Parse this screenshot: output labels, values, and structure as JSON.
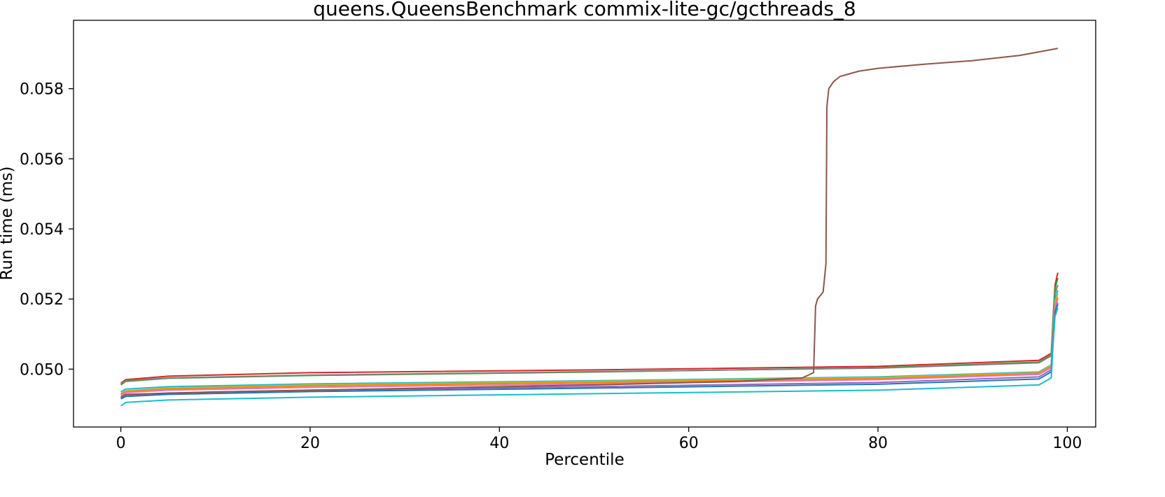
{
  "chart_data": {
    "type": "line",
    "title": "queens.QueensBenchmark commix-lite-gc/gcthreads_8",
    "xlabel": "Percentile",
    "ylabel": "Run time (ms)",
    "xlim": [
      -5,
      103
    ],
    "ylim": [
      0.04835,
      0.05995
    ],
    "xticks": [
      0,
      20,
      40,
      60,
      80,
      100
    ],
    "yticks": [
      0.05,
      0.052,
      0.054,
      0.056,
      0.058
    ],
    "xtick_labels": [
      "0",
      "20",
      "40",
      "60",
      "80",
      "100"
    ],
    "ytick_labels": [
      "0.050",
      "0.052",
      "0.054",
      "0.056",
      "0.058"
    ],
    "grid": false,
    "legend": "none",
    "series": [
      {
        "color": "#d62728",
        "values": [
          [
            0,
            0.0496
          ],
          [
            0.5,
            0.0497
          ],
          [
            5,
            0.0498
          ],
          [
            20,
            0.0499
          ],
          [
            50,
            0.04998
          ],
          [
            80,
            0.05008
          ],
          [
            97,
            0.05025
          ],
          [
            98.3,
            0.05045
          ],
          [
            98.5,
            0.0515
          ],
          [
            98.7,
            0.0524
          ],
          [
            99,
            0.05275
          ]
        ]
      },
      {
        "color": "#2ca02c",
        "values": [
          [
            0,
            0.04955
          ],
          [
            0.5,
            0.04965
          ],
          [
            5,
            0.04974
          ],
          [
            20,
            0.04982
          ],
          [
            50,
            0.04992
          ],
          [
            80,
            0.05004
          ],
          [
            97,
            0.0502
          ],
          [
            98.3,
            0.0504
          ],
          [
            98.5,
            0.0514
          ],
          [
            98.7,
            0.0523
          ],
          [
            99,
            0.0526
          ]
        ]
      },
      {
        "color": "#7f7f7f",
        "values": [
          [
            0,
            0.04958
          ],
          [
            0.5,
            0.04967
          ],
          [
            5,
            0.04975
          ],
          [
            20,
            0.04983
          ],
          [
            50,
            0.04993
          ],
          [
            80,
            0.05003
          ],
          [
            97,
            0.05018
          ],
          [
            98.3,
            0.05038
          ],
          [
            98.5,
            0.0513
          ],
          [
            98.7,
            0.05215
          ],
          [
            99,
            0.0524
          ]
        ]
      },
      {
        "color": "#17becf",
        "values": [
          [
            0,
            0.04935
          ],
          [
            0.5,
            0.04943
          ],
          [
            5,
            0.0495
          ],
          [
            20,
            0.04958
          ],
          [
            50,
            0.04967
          ],
          [
            80,
            0.04978
          ],
          [
            97,
            0.04992
          ],
          [
            98.3,
            0.05012
          ],
          [
            98.5,
            0.0512
          ],
          [
            98.7,
            0.052
          ],
          [
            99,
            0.05225
          ]
        ]
      },
      {
        "color": "#bcbd22",
        "values": [
          [
            0,
            0.0493
          ],
          [
            0.5,
            0.04938
          ],
          [
            5,
            0.04946
          ],
          [
            20,
            0.04955
          ],
          [
            50,
            0.04965
          ],
          [
            80,
            0.04976
          ],
          [
            97,
            0.0499
          ],
          [
            98.3,
            0.0501
          ],
          [
            98.5,
            0.0511
          ],
          [
            98.7,
            0.0519
          ],
          [
            99,
            0.05215
          ]
        ]
      },
      {
        "color": "#ff7f0e",
        "values": [
          [
            0,
            0.04928
          ],
          [
            0.5,
            0.04936
          ],
          [
            5,
            0.04943
          ],
          [
            20,
            0.04952
          ],
          [
            50,
            0.04962
          ],
          [
            80,
            0.04973
          ],
          [
            97,
            0.04988
          ],
          [
            98.3,
            0.05007
          ],
          [
            98.5,
            0.051
          ],
          [
            98.7,
            0.0518
          ],
          [
            99,
            0.05205
          ]
        ]
      },
      {
        "color": "#e377c2",
        "values": [
          [
            0,
            0.04925
          ],
          [
            0.5,
            0.04933
          ],
          [
            5,
            0.0494
          ],
          [
            20,
            0.04948
          ],
          [
            50,
            0.04958
          ],
          [
            80,
            0.0497
          ],
          [
            97,
            0.04985
          ],
          [
            98.3,
            0.05004
          ],
          [
            98.5,
            0.051
          ],
          [
            98.7,
            0.05175
          ],
          [
            99,
            0.052
          ]
        ]
      },
      {
        "color": "#9467bd",
        "values": [
          [
            0,
            0.04918
          ],
          [
            0.5,
            0.04926
          ],
          [
            5,
            0.04932
          ],
          [
            20,
            0.0494
          ],
          [
            50,
            0.0495
          ],
          [
            80,
            0.04962
          ],
          [
            97,
            0.04978
          ],
          [
            98.3,
            0.04998
          ],
          [
            98.5,
            0.0509
          ],
          [
            98.7,
            0.05165
          ],
          [
            99,
            0.0519
          ]
        ]
      },
      {
        "color": "#1f77b4",
        "values": [
          [
            0,
            0.04915
          ],
          [
            0.5,
            0.04922
          ],
          [
            5,
            0.04928
          ],
          [
            20,
            0.04936
          ],
          [
            50,
            0.04946
          ],
          [
            80,
            0.04957
          ],
          [
            97,
            0.04972
          ],
          [
            98.3,
            0.04992
          ],
          [
            98.5,
            0.0508
          ],
          [
            98.7,
            0.0516
          ],
          [
            99,
            0.05185
          ]
        ]
      },
      {
        "color": "#17becf",
        "values": [
          [
            0,
            0.04895
          ],
          [
            0.5,
            0.04905
          ],
          [
            5,
            0.04912
          ],
          [
            20,
            0.0492
          ],
          [
            50,
            0.0493
          ],
          [
            80,
            0.0494
          ],
          [
            97,
            0.04955
          ],
          [
            98.3,
            0.04975
          ],
          [
            98.5,
            0.0507
          ],
          [
            98.7,
            0.0515
          ],
          [
            99,
            0.05175
          ]
        ]
      },
      {
        "color": "#8c564b",
        "values": [
          [
            0,
            0.0492
          ],
          [
            0.5,
            0.04928
          ],
          [
            10,
            0.04935
          ],
          [
            30,
            0.04945
          ],
          [
            50,
            0.04955
          ],
          [
            65,
            0.04965
          ],
          [
            72,
            0.04975
          ],
          [
            73.2,
            0.0499
          ],
          [
            73.4,
            0.0518
          ],
          [
            73.6,
            0.052
          ],
          [
            74.2,
            0.0522
          ],
          [
            74.5,
            0.053
          ],
          [
            74.6,
            0.0575
          ],
          [
            74.8,
            0.058
          ],
          [
            75.3,
            0.0582
          ],
          [
            76,
            0.05835
          ],
          [
            78,
            0.0585
          ],
          [
            80,
            0.05858
          ],
          [
            85,
            0.0587
          ],
          [
            90,
            0.0588
          ],
          [
            95,
            0.05895
          ],
          [
            97,
            0.05905
          ],
          [
            99,
            0.05915
          ]
        ]
      }
    ]
  }
}
